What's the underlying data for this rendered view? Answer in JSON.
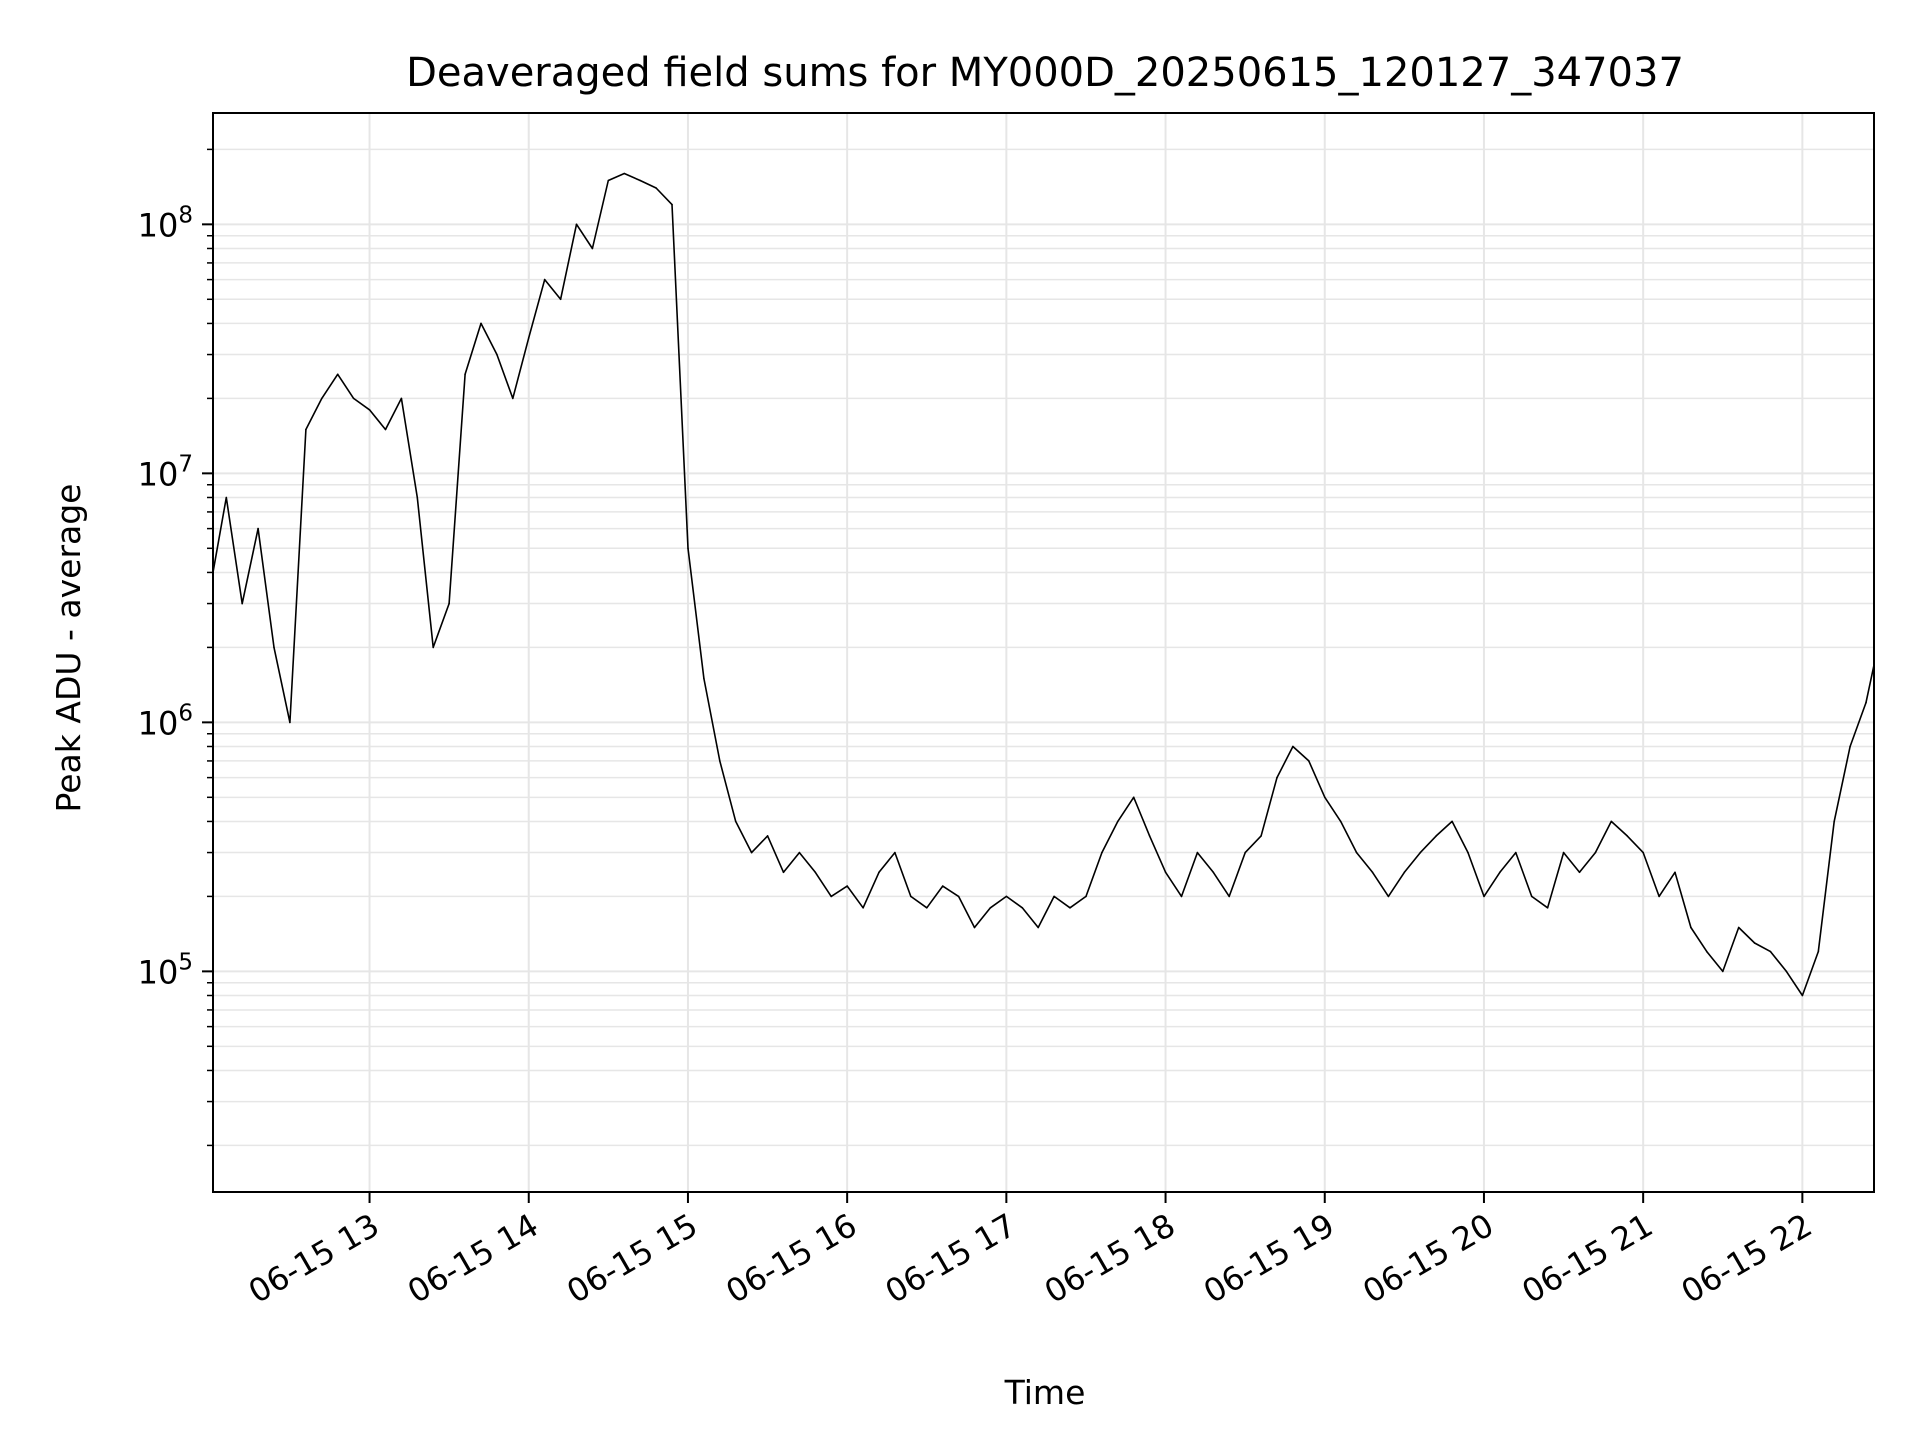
{
  "chart_data": {
    "type": "line",
    "title": "Deaveraged field sums for MY000D_20250615_120127_347037",
    "xlabel": "Time",
    "ylabel": "Peak ADU - average",
    "x_range": [
      "06-15 12:01",
      "06-15 22:27"
    ],
    "x_ticks": [
      "06-15 13",
      "06-15 14",
      "06-15 15",
      "06-15 16",
      "06-15 17",
      "06-15 18",
      "06-15 19",
      "06-15 20",
      "06-15 21",
      "06-15 22"
    ],
    "y_scale": "log",
    "ylim": [
      13000,
      280000000
    ],
    "y_ticks": [
      {
        "value": 100000,
        "base": "10",
        "exp": "5"
      },
      {
        "value": 1000000,
        "base": "10",
        "exp": "6"
      },
      {
        "value": 10000000,
        "base": "10",
        "exp": "7"
      },
      {
        "value": 100000000,
        "base": "10",
        "exp": "8"
      }
    ],
    "grid": true,
    "legend": "none",
    "line_color": "#000000",
    "grid_color": "#e6e6e6",
    "series": [
      {
        "x": [
          "06-15 12:01",
          "06-15 12:06",
          "06-15 12:12",
          "06-15 12:18",
          "06-15 12:24",
          "06-15 12:30",
          "06-15 12:36",
          "06-15 12:42",
          "06-15 12:48",
          "06-15 12:54",
          "06-15 13:00",
          "06-15 13:06",
          "06-15 13:12",
          "06-15 13:18",
          "06-15 13:24",
          "06-15 13:30",
          "06-15 13:36",
          "06-15 13:42",
          "06-15 13:48",
          "06-15 13:54",
          "06-15 14:00",
          "06-15 14:06",
          "06-15 14:12",
          "06-15 14:18",
          "06-15 14:24",
          "06-15 14:30",
          "06-15 14:36",
          "06-15 14:42",
          "06-15 14:48",
          "06-15 14:54",
          "06-15 15:00",
          "06-15 15:06",
          "06-15 15:12",
          "06-15 15:18",
          "06-15 15:24",
          "06-15 15:30",
          "06-15 15:36",
          "06-15 15:42",
          "06-15 15:48",
          "06-15 15:54",
          "06-15 16:00",
          "06-15 16:06",
          "06-15 16:12",
          "06-15 16:18",
          "06-15 16:24",
          "06-15 16:30",
          "06-15 16:36",
          "06-15 16:42",
          "06-15 16:48",
          "06-15 16:54",
          "06-15 17:00",
          "06-15 17:06",
          "06-15 17:12",
          "06-15 17:18",
          "06-15 17:24",
          "06-15 17:30",
          "06-15 17:36",
          "06-15 17:42",
          "06-15 17:48",
          "06-15 17:54",
          "06-15 18:00",
          "06-15 18:06",
          "06-15 18:12",
          "06-15 18:18",
          "06-15 18:24",
          "06-15 18:30",
          "06-15 18:36",
          "06-15 18:42",
          "06-15 18:48",
          "06-15 18:54",
          "06-15 19:00",
          "06-15 19:06",
          "06-15 19:12",
          "06-15 19:18",
          "06-15 19:24",
          "06-15 19:30",
          "06-15 19:36",
          "06-15 19:42",
          "06-15 19:48",
          "06-15 19:54",
          "06-15 20:00",
          "06-15 20:06",
          "06-15 20:12",
          "06-15 20:18",
          "06-15 20:24",
          "06-15 20:30",
          "06-15 20:36",
          "06-15 20:42",
          "06-15 20:48",
          "06-15 20:54",
          "06-15 21:00",
          "06-15 21:06",
          "06-15 21:12",
          "06-15 21:18",
          "06-15 21:24",
          "06-15 21:30",
          "06-15 21:36",
          "06-15 21:42",
          "06-15 21:48",
          "06-15 21:54",
          "06-15 22:00",
          "06-15 22:06",
          "06-15 22:12",
          "06-15 22:18",
          "06-15 22:24",
          "06-15 22:27"
        ],
        "y": [
          4000000,
          8000000,
          3000000,
          6000000,
          2000000,
          1000000,
          15000000,
          20000000,
          25000000,
          20000000,
          18000000,
          15000000,
          20000000,
          8000000,
          2000000,
          3000000,
          25000000,
          40000000,
          30000000,
          20000000,
          35000000,
          60000000,
          50000000,
          100000000,
          80000000,
          150000000,
          160000000,
          150000000,
          140000000,
          120000000,
          5000000,
          1500000,
          700000,
          400000,
          300000,
          350000,
          250000,
          300000,
          250000,
          200000,
          220000,
          180000,
          250000,
          300000,
          200000,
          180000,
          220000,
          200000,
          150000,
          180000,
          200000,
          180000,
          150000,
          200000,
          180000,
          200000,
          300000,
          400000,
          500000,
          350000,
          250000,
          200000,
          300000,
          250000,
          200000,
          300000,
          350000,
          600000,
          800000,
          700000,
          500000,
          400000,
          300000,
          250000,
          200000,
          250000,
          300000,
          350000,
          400000,
          300000,
          200000,
          250000,
          300000,
          200000,
          180000,
          300000,
          250000,
          300000,
          400000,
          350000,
          300000,
          200000,
          250000,
          150000,
          120000,
          100000,
          150000,
          130000,
          120000,
          100000,
          80000,
          120000,
          400000,
          800000,
          1200000,
          1700000
        ]
      }
    ]
  }
}
